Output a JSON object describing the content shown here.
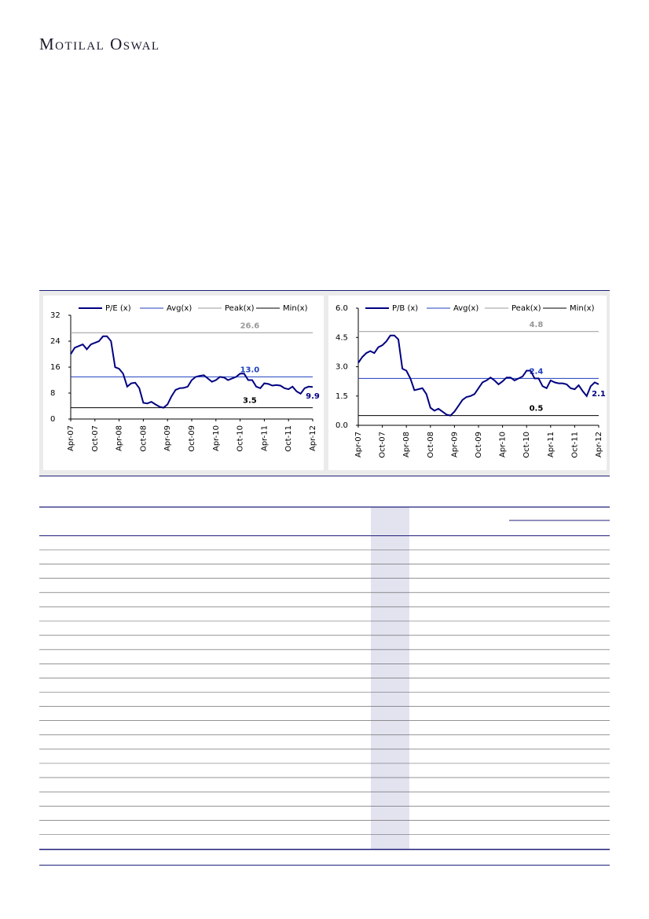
{
  "header": {
    "brand": "Motilal Oswal"
  },
  "chart_data": [
    {
      "type": "line",
      "categories": [
        "Apr-07",
        null,
        null,
        null,
        null,
        null,
        "Oct-07",
        null,
        null,
        null,
        null,
        null,
        "Apr-08",
        null,
        null,
        null,
        null,
        null,
        "Oct-08",
        null,
        null,
        null,
        null,
        null,
        "Apr-09",
        null,
        null,
        null,
        null,
        null,
        "Oct-09",
        null,
        null,
        null,
        null,
        null,
        "Apr-10",
        null,
        null,
        null,
        null,
        null,
        "Oct-10",
        null,
        null,
        null,
        null,
        null,
        "Apr-11",
        null,
        null,
        null,
        null,
        null,
        "Oct-11",
        null,
        null,
        null,
        null,
        null,
        "Apr-12"
      ],
      "series": [
        {
          "name": "P/E (x)",
          "color": "#000080",
          "values": [
            20,
            22,
            22.5,
            23,
            21.5,
            23,
            23.5,
            24,
            25.5,
            25.5,
            24,
            16,
            15.5,
            14,
            10,
            11,
            11.2,
            9.5,
            5,
            4.8,
            5.3,
            4.5,
            3.8,
            3.5,
            4.5,
            7,
            9,
            9.5,
            9.6,
            10,
            12,
            13,
            13.3,
            13.5,
            12.5,
            11.5,
            12,
            13,
            12.8,
            12,
            12.5,
            13,
            14,
            14,
            12,
            12,
            10,
            9.5,
            11,
            10.8,
            10.3,
            10.5,
            10.3,
            9.5,
            9.2,
            10,
            8.5,
            7.8,
            9.5,
            10,
            9.9
          ],
          "value_labels": [
            null,
            null,
            null,
            null,
            null,
            null,
            null,
            null,
            null,
            null,
            null,
            null,
            null,
            null,
            null,
            null,
            null,
            null,
            null,
            null,
            null,
            null,
            null,
            null,
            null,
            null,
            null,
            null,
            null,
            null,
            null,
            null,
            null,
            null,
            null,
            null,
            null,
            null,
            null,
            null,
            null,
            null,
            null,
            null,
            null,
            null,
            null,
            null,
            null,
            null,
            null,
            null,
            null,
            null,
            null,
            null,
            null,
            null,
            null,
            null,
            "9.9"
          ]
        }
      ],
      "reference_lines": [
        {
          "name": "Avg(x)",
          "value": 13,
          "label": "13.0",
          "color": "#1f3fbf"
        },
        {
          "name": "Peak(x)",
          "value": 26.6,
          "label": "26.6",
          "color": "#999999"
        },
        {
          "name": "Min(x)",
          "value": 3.5,
          "label": "3.5",
          "color": "#000000"
        }
      ],
      "ylim": [
        0,
        32
      ],
      "yticks": [
        0,
        8,
        16,
        24,
        32
      ]
    },
    {
      "type": "line",
      "categories": [
        "Apr-07",
        null,
        null,
        null,
        null,
        null,
        "Oct-07",
        null,
        null,
        null,
        null,
        null,
        "Apr-08",
        null,
        null,
        null,
        null,
        null,
        "Oct-08",
        null,
        null,
        null,
        null,
        null,
        "Apr-09",
        null,
        null,
        null,
        null,
        null,
        "Oct-09",
        null,
        null,
        null,
        null,
        null,
        "Apr-10",
        null,
        null,
        null,
        null,
        null,
        "Oct-10",
        null,
        null,
        null,
        null,
        null,
        "Apr-11",
        null,
        null,
        null,
        null,
        null,
        "Oct-11",
        null,
        null,
        null,
        null,
        null,
        "Apr-12"
      ],
      "series": [
        {
          "name": "P/B (x)",
          "color": "#000080",
          "values": [
            3.2,
            3.5,
            3.7,
            3.8,
            3.7,
            4.0,
            4.1,
            4.3,
            4.6,
            4.6,
            4.4,
            2.9,
            2.8,
            2.4,
            1.8,
            1.85,
            1.9,
            1.6,
            0.9,
            0.75,
            0.85,
            0.7,
            0.55,
            0.5,
            0.7,
            1.0,
            1.3,
            1.45,
            1.5,
            1.6,
            1.9,
            2.2,
            2.3,
            2.45,
            2.3,
            2.1,
            2.25,
            2.45,
            2.45,
            2.3,
            2.4,
            2.5,
            2.8,
            2.8,
            2.4,
            2.4,
            2.0,
            1.9,
            2.3,
            2.2,
            2.15,
            2.15,
            2.1,
            1.9,
            1.85,
            2.05,
            1.75,
            1.5,
            2.0,
            2.2,
            2.1
          ],
          "value_labels": [
            null,
            null,
            null,
            null,
            null,
            null,
            null,
            null,
            null,
            null,
            null,
            null,
            null,
            null,
            null,
            null,
            null,
            null,
            null,
            null,
            null,
            null,
            null,
            null,
            null,
            null,
            null,
            null,
            null,
            null,
            null,
            null,
            null,
            null,
            null,
            null,
            null,
            null,
            null,
            null,
            null,
            null,
            null,
            null,
            null,
            null,
            null,
            null,
            null,
            null,
            null,
            null,
            null,
            null,
            null,
            null,
            null,
            null,
            null,
            null,
            "2.1"
          ]
        }
      ],
      "reference_lines": [
        {
          "name": "Avg(x)",
          "value": 2.4,
          "label": "2.4",
          "color": "#1f3fbf"
        },
        {
          "name": "Peak(x)",
          "value": 4.8,
          "label": "4.8",
          "color": "#999999"
        },
        {
          "name": "Min(x)",
          "value": 0.5,
          "label": "0.5",
          "color": "#000000"
        }
      ],
      "ylim": [
        0,
        6
      ],
      "yticks": [
        {
          "value": 0,
          "label": "0.0"
        },
        {
          "value": 1.5,
          "label": "1.5"
        },
        {
          "value": 3,
          "label": "3.0"
        },
        {
          "value": 4.5,
          "label": "4.5"
        },
        {
          "value": 6,
          "label": "6.0"
        }
      ]
    }
  ]
}
